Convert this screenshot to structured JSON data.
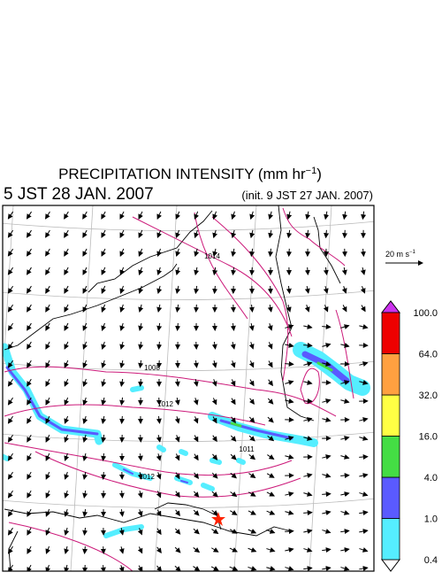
{
  "title": {
    "main": "PRECIPITATION INTENSITY (mm hr",
    "exponent": "−1",
    "end": ")"
  },
  "valid_time": "5 JST 28 JAN. 2007",
  "init_time": "(init. 9 JST 27 JAN. 2007)",
  "wind_scale": {
    "main": "20 m s",
    "exponent": "−1"
  },
  "isobar_labels": [
    "1014",
    "1008",
    "1012",
    "1011",
    "1012"
  ],
  "colorbar": {
    "levels": [
      {
        "value": 0.4,
        "label": "0.4"
      },
      {
        "value": 1,
        "label": "1.0"
      },
      {
        "value": 4,
        "label": "4.0"
      },
      {
        "value": 16,
        "label": "16.0"
      },
      {
        "value": 32,
        "label": "32.0"
      },
      {
        "value": 64,
        "label": "64.0"
      },
      {
        "value": 100,
        "label": "100.0"
      }
    ],
    "colors": [
      "#55eeff",
      "#5a5aff",
      "#44dd44",
      "#ffff44",
      "#ffa040",
      "#ee0000"
    ],
    "under_color": "#ffffff",
    "over_color": "#cc33ee"
  }
}
